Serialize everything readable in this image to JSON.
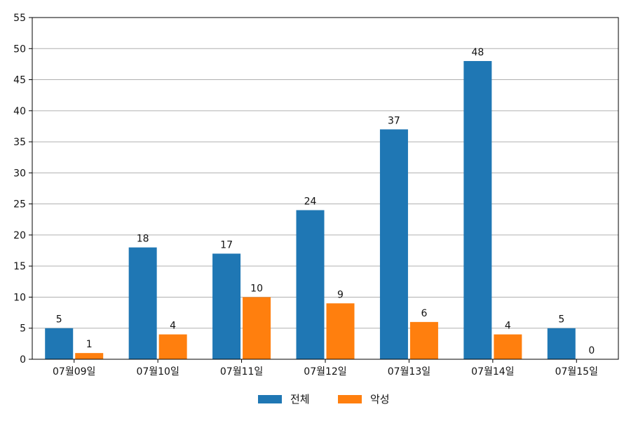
{
  "chart_data": {
    "type": "bar",
    "categories": [
      "07월09일",
      "07월10일",
      "07월11일",
      "07월12일",
      "07월13일",
      "07월14일",
      "07월15일"
    ],
    "series": [
      {
        "name": "전체",
        "values": [
          5,
          18,
          17,
          24,
          37,
          48,
          5
        ],
        "color": "#1f77b4"
      },
      {
        "name": "악성",
        "values": [
          1,
          4,
          10,
          9,
          6,
          4,
          0
        ],
        "color": "#ff7f0e"
      }
    ],
    "title": "",
    "xlabel": "",
    "ylabel": "",
    "ylim": [
      0,
      55
    ],
    "yticks": [
      0,
      5,
      10,
      15,
      20,
      25,
      30,
      35,
      40,
      45,
      50,
      55
    ],
    "grid": "y",
    "legend": "bottom-center"
  }
}
